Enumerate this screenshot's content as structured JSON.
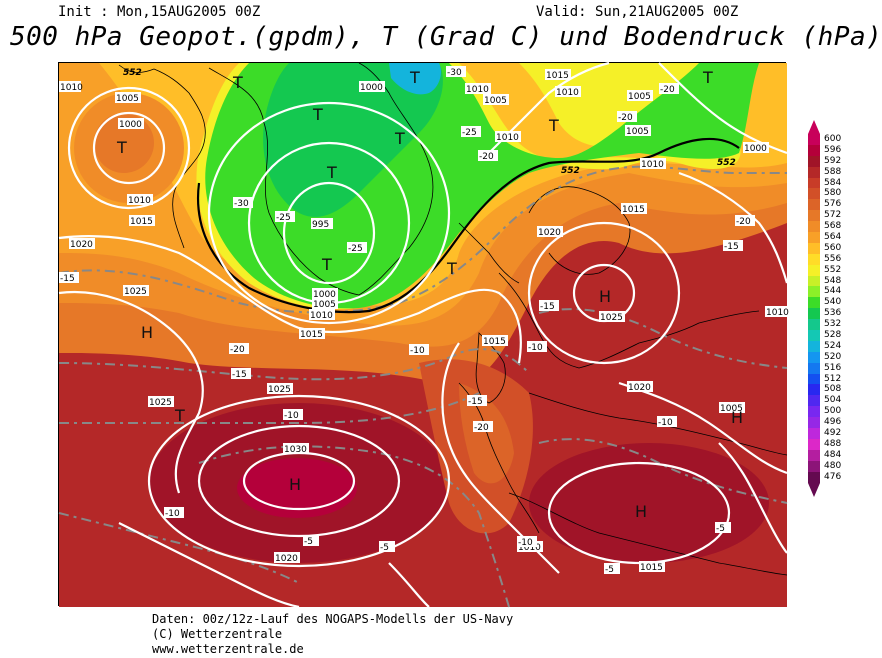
{
  "header": {
    "init": "Init : Mon,15AUG2005 00Z",
    "valid": "Valid: Sun,21AUG2005 00Z",
    "title": "500 hPa Geopot.(gpdm), T (Grad C) und Bodendruck (hPa)"
  },
  "legend": {
    "values": [
      "600",
      "596",
      "592",
      "588",
      "584",
      "580",
      "576",
      "572",
      "568",
      "564",
      "560",
      "556",
      "552",
      "548",
      "544",
      "540",
      "536",
      "532",
      "528",
      "524",
      "520",
      "516",
      "512",
      "508",
      "504",
      "500",
      "496",
      "492",
      "488",
      "484",
      "480",
      "476"
    ],
    "colors": [
      "#c8005a",
      "#b4003a",
      "#a01428",
      "#b42828",
      "#c83c28",
      "#d25028",
      "#dc6428",
      "#e67828",
      "#f08c28",
      "#f8a028",
      "#ffbe28",
      "#ffdc28",
      "#f5f028",
      "#c8f028",
      "#8cf028",
      "#3cdc28",
      "#14c850",
      "#14c88c",
      "#14c8b4",
      "#14b4dc",
      "#1496f0",
      "#1478f0",
      "#1450f0",
      "#2828f0",
      "#5028f0",
      "#7828f0",
      "#9628e6",
      "#be28dc",
      "#dc28c8",
      "#b41ea0",
      "#8c1478",
      "#640a50"
    ]
  },
  "map": {
    "pressure_labels": [
      "1010",
      "1005",
      "1000",
      "1010",
      "1015",
      "1020",
      "1025",
      "1025",
      "1030",
      "1025",
      "1020",
      "1015",
      "1010",
      "1005",
      "1000",
      "995",
      "1000",
      "1005",
      "1010",
      "1015",
      "1015",
      "1010",
      "1005",
      "1020",
      "1025",
      "1020",
      "1015",
      "1010",
      "1005",
      "1010",
      "1015",
      "1000",
      "1010",
      "1005",
      "1010",
      "1015"
    ],
    "temp_labels": [
      "-30",
      "-25",
      "-25",
      "-30",
      "-25",
      "-20",
      "-20",
      "-15",
      "-10",
      "-10",
      "-15",
      "-20",
      "-20",
      "-15",
      "-10",
      "-5",
      "-5",
      "-10",
      "-5",
      "-5",
      "-20",
      "-15",
      "-10",
      "-20",
      "-15",
      "-10"
    ],
    "geo_labels": [
      "552",
      "552",
      "552"
    ],
    "highs": [
      "H",
      "H",
      "H",
      "H",
      "H"
    ],
    "lows": [
      "T",
      "T",
      "T",
      "T",
      "T",
      "T",
      "T",
      "T",
      "T",
      "T",
      "T"
    ]
  },
  "footer": {
    "line1": "Daten: 00z/12z-Lauf des NOGAPS-Modells der US-Navy",
    "line2": "(C) Wetterzentrale",
    "line3": "www.wetterzentrale.de"
  }
}
